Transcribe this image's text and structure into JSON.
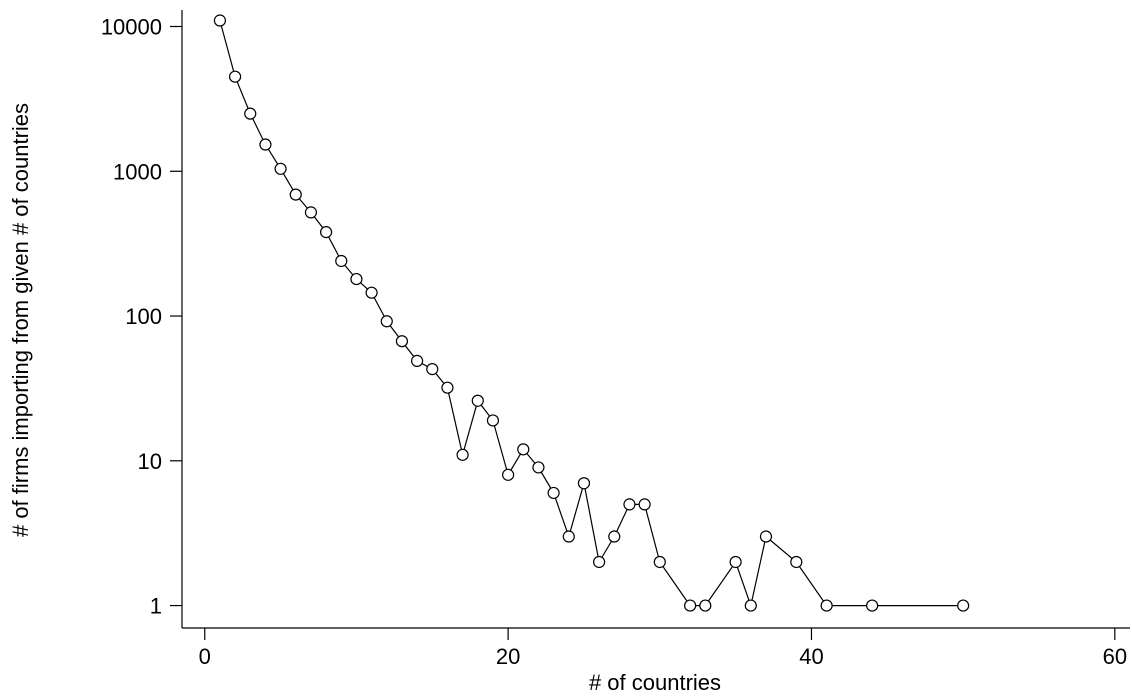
{
  "chart_data": {
    "type": "line",
    "title": "",
    "xlabel": "# of countries",
    "ylabel": "# of firms importing from given # of countries",
    "xlim": [
      -1.5,
      61
    ],
    "ylim": [
      0.7,
      13000
    ],
    "y_scale": "log",
    "x_ticks": [
      0,
      20,
      40,
      60
    ],
    "x_tick_labels": [
      "0",
      "20",
      "40",
      "60"
    ],
    "y_ticks": [
      1,
      10,
      100,
      1000,
      10000
    ],
    "y_tick_labels": [
      "1",
      "10",
      "100",
      "1000",
      "10000"
    ],
    "grid": false,
    "legend": "none",
    "marker": "hollow-circle",
    "line_color": "#000000",
    "series": [
      {
        "x": [
          1,
          2,
          3,
          4,
          5,
          6,
          7,
          8,
          9,
          10,
          11,
          12,
          13,
          14,
          15,
          16,
          17,
          18,
          19,
          20,
          21,
          22,
          23,
          24,
          25,
          26,
          27,
          28,
          29,
          30,
          32,
          33,
          35,
          36,
          37,
          39,
          41,
          44,
          50
        ],
        "values": [
          11000,
          4500,
          2500,
          1530,
          1040,
          690,
          520,
          380,
          240,
          180,
          145,
          92,
          67,
          49,
          43,
          32,
          11,
          26,
          19,
          8,
          12,
          9,
          6,
          3,
          7,
          2,
          3,
          5,
          5,
          2,
          1,
          1,
          2,
          1,
          3,
          2,
          1,
          1,
          1
        ]
      }
    ]
  }
}
